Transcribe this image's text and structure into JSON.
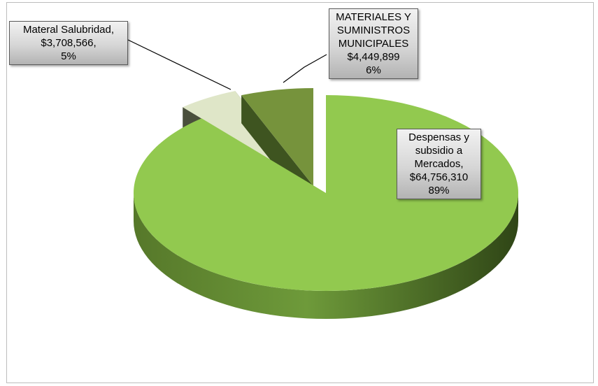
{
  "chart_data": {
    "type": "pie",
    "title": "",
    "slices": [
      {
        "name": "Despensas y subsidio a Mercados",
        "value": 64756310,
        "value_label": "$64,756,310",
        "percent_label": "89%",
        "color": "#92c94f"
      },
      {
        "name": "Materal Salubridad",
        "value": 3708566,
        "value_label": "$3,708,566,",
        "percent_label": "5%",
        "color": "#dfe6c8"
      },
      {
        "name": "MATERIALES Y SUMINISTROS MUNICIPALES",
        "value": 4449899,
        "value_label": "$4,449,899",
        "percent_label": "6%",
        "color": "#76933c"
      }
    ],
    "labels": {
      "salubridad": {
        "lines": [
          "Materal Salubridad,",
          "$3,708,566,",
          "5%"
        ]
      },
      "materiales": {
        "lines": [
          "MATERIALES Y",
          "SUMINISTROS",
          "MUNICIPALES",
          "$4,449,899",
          "6%"
        ]
      },
      "despensas": {
        "lines": [
          "Despensas y",
          "subsidio a",
          "Mercados,",
          "$64,756,310",
          "89%"
        ]
      }
    },
    "style": "3d-exploded"
  }
}
